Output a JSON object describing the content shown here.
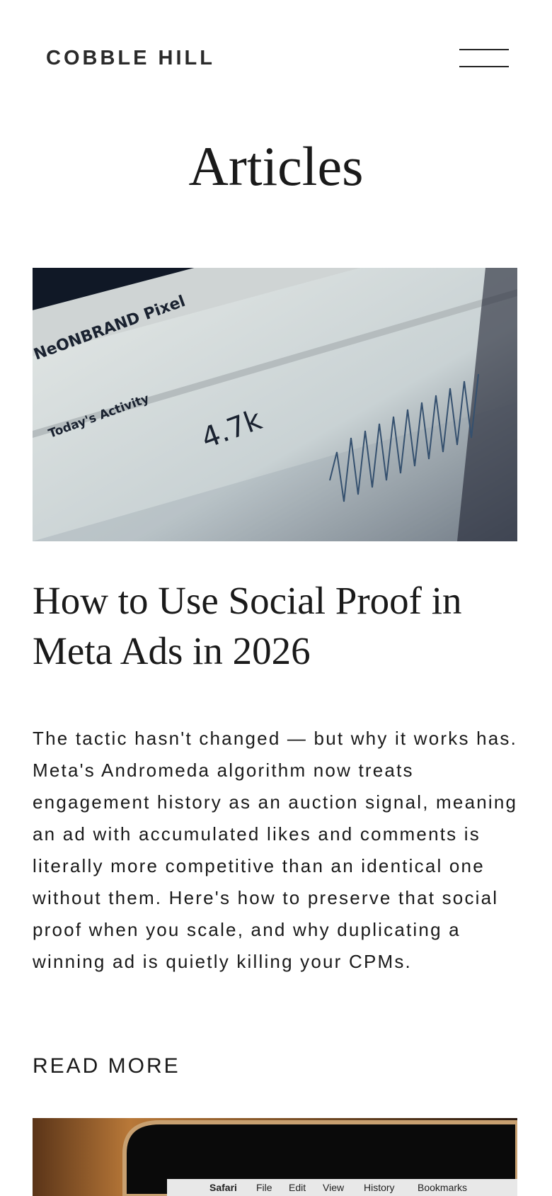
{
  "header": {
    "logo": "COBBLE HILL"
  },
  "page_title": "Articles",
  "articles": [
    {
      "image": {
        "texts": [
          "NeONBRAND Pixel",
          "Today's Activity",
          "4.7k"
        ]
      },
      "title": "How to Use Social Proof in Meta Ads in 2026",
      "excerpt": "The tactic hasn't changed — but why it works has. Meta's Andromeda algorithm now treats engagement history as an auction signal, meaning an ad with accumulated likes and comments is literally more competitive than an identical one without them. Here's how to preserve that social proof when you scale, and why duplicating a winning ad is quietly killing your CPMs.",
      "link": "READ MORE"
    },
    {
      "image": {
        "texts": [
          "Safari",
          "File",
          "Edit",
          "View",
          "History",
          "Bookmarks"
        ]
      }
    }
  ]
}
